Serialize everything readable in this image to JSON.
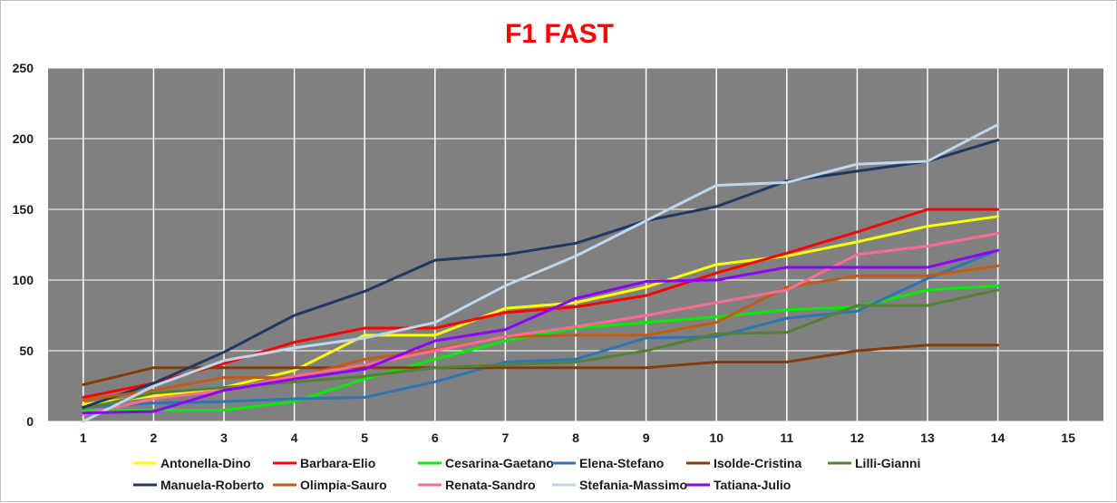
{
  "chart_data": {
    "type": "line",
    "title": "F1  FAST",
    "xlabel": "",
    "ylabel": "",
    "x": [
      1,
      2,
      3,
      4,
      5,
      6,
      7,
      8,
      9,
      10,
      11,
      12,
      13,
      14
    ],
    "x_ticks": [
      "1",
      "2",
      "3",
      "4",
      "5",
      "6",
      "7",
      "8",
      "9",
      "10",
      "11",
      "12",
      "13",
      "14",
      "15"
    ],
    "xlim": [
      1,
      15
    ],
    "y_ticks": [
      "0",
      "50",
      "100",
      "150",
      "200",
      "250"
    ],
    "ylim": [
      0,
      250
    ],
    "grid": true,
    "plot_background": "#808080",
    "grid_color": "#ffffff",
    "legend_position": "bottom",
    "series": [
      {
        "name": "Antonella-Dino",
        "color": "#ffff00",
        "values": [
          12,
          18,
          24,
          36,
          61,
          61,
          80,
          84,
          95,
          111,
          117,
          127,
          138,
          145
        ]
      },
      {
        "name": "Barbara-Elio",
        "color": "#ff0000",
        "values": [
          17,
          27,
          41,
          56,
          66,
          66,
          77,
          81,
          89,
          105,
          119,
          134,
          150,
          150
        ]
      },
      {
        "name": "Cesarina-Gaetano",
        "color": "#00ee00",
        "values": [
          8,
          8,
          8,
          14,
          30,
          44,
          57,
          66,
          70,
          74,
          79,
          81,
          93,
          96
        ]
      },
      {
        "name": "Elena-Stefano",
        "color": "#2e75b6",
        "values": [
          10,
          13,
          14,
          16,
          17,
          28,
          42,
          44,
          59,
          60,
          73,
          78,
          101,
          121
        ]
      },
      {
        "name": "Isolde-Cristina",
        "color": "#843c0c",
        "values": [
          26,
          38,
          38,
          38,
          38,
          38,
          38,
          38,
          38,
          42,
          42,
          50,
          54,
          54
        ]
      },
      {
        "name": "Lilli-Gianni",
        "color": "#548235",
        "values": [
          9,
          20,
          24,
          28,
          32,
          38,
          40,
          42,
          50,
          62,
          63,
          82,
          82,
          93
        ]
      },
      {
        "name": "Manuela-Roberto",
        "color": "#1f3864",
        "values": [
          10,
          27,
          49,
          75,
          92,
          114,
          118,
          126,
          142,
          152,
          170,
          177,
          184,
          199
        ]
      },
      {
        "name": "Olimpia-Sauro",
        "color": "#c55a11",
        "values": [
          15,
          22,
          31,
          31,
          44,
          51,
          60,
          61,
          61,
          70,
          95,
          103,
          103,
          110
        ]
      },
      {
        "name": "Renata-Sandro",
        "color": "#ff6b91",
        "values": [
          5,
          16,
          22,
          32,
          40,
          50,
          60,
          67,
          75,
          84,
          93,
          118,
          124,
          133
        ]
      },
      {
        "name": "Stefania-Massimo",
        "color": "#bdd7ee",
        "values": [
          0,
          25,
          43,
          52,
          59,
          70,
          96,
          117,
          142,
          167,
          169,
          182,
          184,
          210
        ]
      },
      {
        "name": "Tatiana-Julio",
        "color": "#8b00ff",
        "values": [
          6,
          7,
          22,
          30,
          37,
          57,
          65,
          87,
          99,
          100,
          109,
          109,
          109,
          121
        ]
      }
    ]
  }
}
